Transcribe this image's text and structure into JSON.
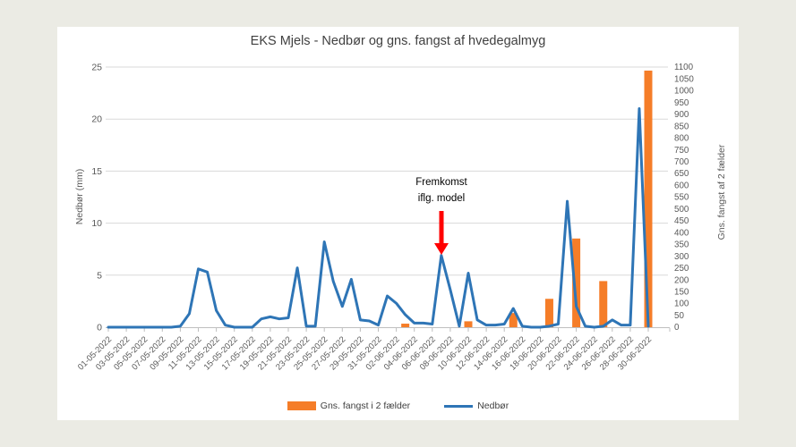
{
  "page": {
    "background": "#EBEBE4",
    "card_background": "#FFFFFF"
  },
  "chart": {
    "title": "EKS Mjels - Nedbør og gns. fangst af hvedegalmyg",
    "left_axis_title": "Nedbør (mm)",
    "right_axis_title": "Gns. fangst af 2 fælder",
    "annotation": {
      "line1": "Fremkomst",
      "line2": "iflg. model",
      "arrow_color": "#FF0000"
    },
    "legend": [
      {
        "label": "Gns. fangst i 2 fælder",
        "type": "bar",
        "color": "#F57D28"
      },
      {
        "label": "Nedbør",
        "type": "line",
        "color": "#2E75B6"
      }
    ]
  },
  "chart_data": {
    "type": "combo",
    "title": "EKS Mjels - Nedbør og gns. fangst af hvedegalmyg",
    "xlabel": "",
    "ylabel_left": "Nedbør (mm)",
    "ylabel_right": "Gns. fangst af 2 fælder",
    "grid": "horizontal",
    "legend_position": "bottom",
    "x_labels_shown_every": 2,
    "x": [
      "01-05-2022",
      "02-05-2022",
      "03-05-2022",
      "04-05-2022",
      "05-05-2022",
      "06-05-2022",
      "07-05-2022",
      "08-05-2022",
      "09-05-2022",
      "10-05-2022",
      "11-05-2022",
      "12-05-2022",
      "13-05-2022",
      "14-05-2022",
      "15-05-2022",
      "16-05-2022",
      "17-05-2022",
      "18-05-2022",
      "19-05-2022",
      "20-05-2022",
      "21-05-2022",
      "22-05-2022",
      "23-05-2022",
      "24-05-2022",
      "25-05-2022",
      "26-05-2022",
      "27-05-2022",
      "28-05-2022",
      "29-05-2022",
      "30-05-2022",
      "31-05-2022",
      "01-06-2022",
      "02-06-2022",
      "03-06-2022",
      "04-06-2022",
      "05-06-2022",
      "06-06-2022",
      "07-06-2022",
      "08-06-2022",
      "09-06-2022",
      "10-06-2022",
      "11-06-2022",
      "12-06-2022",
      "13-06-2022",
      "14-06-2022",
      "15-06-2022",
      "16-06-2022",
      "17-06-2022",
      "18-06-2022",
      "19-06-2022",
      "20-06-2022",
      "21-06-2022",
      "22-06-2022",
      "23-06-2022",
      "24-06-2022",
      "25-06-2022",
      "26-06-2022",
      "27-06-2022",
      "28-06-2022",
      "29-06-2022",
      "30-06-2022"
    ],
    "series": [
      {
        "name": "Nedbør",
        "type": "line",
        "axis": "left",
        "color": "#2E75B6",
        "values": [
          0,
          0,
          0,
          0,
          0,
          0,
          0,
          0,
          0.1,
          1.3,
          5.6,
          5.3,
          1.6,
          0.2,
          0,
          0,
          0,
          0.8,
          1.0,
          0.8,
          0.9,
          5.7,
          0.1,
          0.1,
          8.2,
          4.4,
          2.0,
          4.6,
          0.7,
          0.6,
          0.2,
          3.0,
          2.3,
          1.2,
          0.4,
          0.4,
          0.3,
          6.9,
          3.6,
          0.1,
          5.2,
          0.7,
          0.2,
          0.2,
          0.3,
          1.8,
          0.1,
          0,
          0,
          0.1,
          0.3,
          12.1,
          2.0,
          0.1,
          0,
          0.1,
          0.7,
          0.2,
          0.2,
          21.0,
          0.1
        ]
      },
      {
        "name": "Gns. fangst i 2 fælder",
        "type": "bar",
        "axis": "right",
        "color": "#F57D28",
        "values": [
          0,
          0,
          0,
          0,
          0,
          0,
          0,
          0,
          0,
          0,
          0,
          0,
          0,
          0,
          0,
          0,
          0,
          0,
          0,
          0,
          0,
          0,
          0,
          0,
          0,
          0,
          0,
          0,
          0,
          0,
          0,
          0,
          0,
          15,
          0,
          0,
          0,
          0,
          0,
          0,
          25,
          0,
          0,
          0,
          0,
          60,
          0,
          0,
          0,
          120,
          0,
          0,
          375,
          0,
          0,
          195,
          0,
          0,
          0,
          0,
          1085
        ]
      }
    ],
    "left_axis": {
      "min": 0,
      "max": 25,
      "step": 5,
      "ticks": [
        0,
        5,
        10,
        15,
        20,
        25
      ]
    },
    "right_axis": {
      "min": 0,
      "max": 1100,
      "step": 50
    },
    "annotation": {
      "text": "Fremkomst iflg. model",
      "points_at_x": "07-06-2022",
      "arrow_color": "#FF0000"
    },
    "colors": {
      "grid": "#D9D9D9",
      "axis_line": "#BFBFBF",
      "tick_text": "#595959"
    }
  }
}
